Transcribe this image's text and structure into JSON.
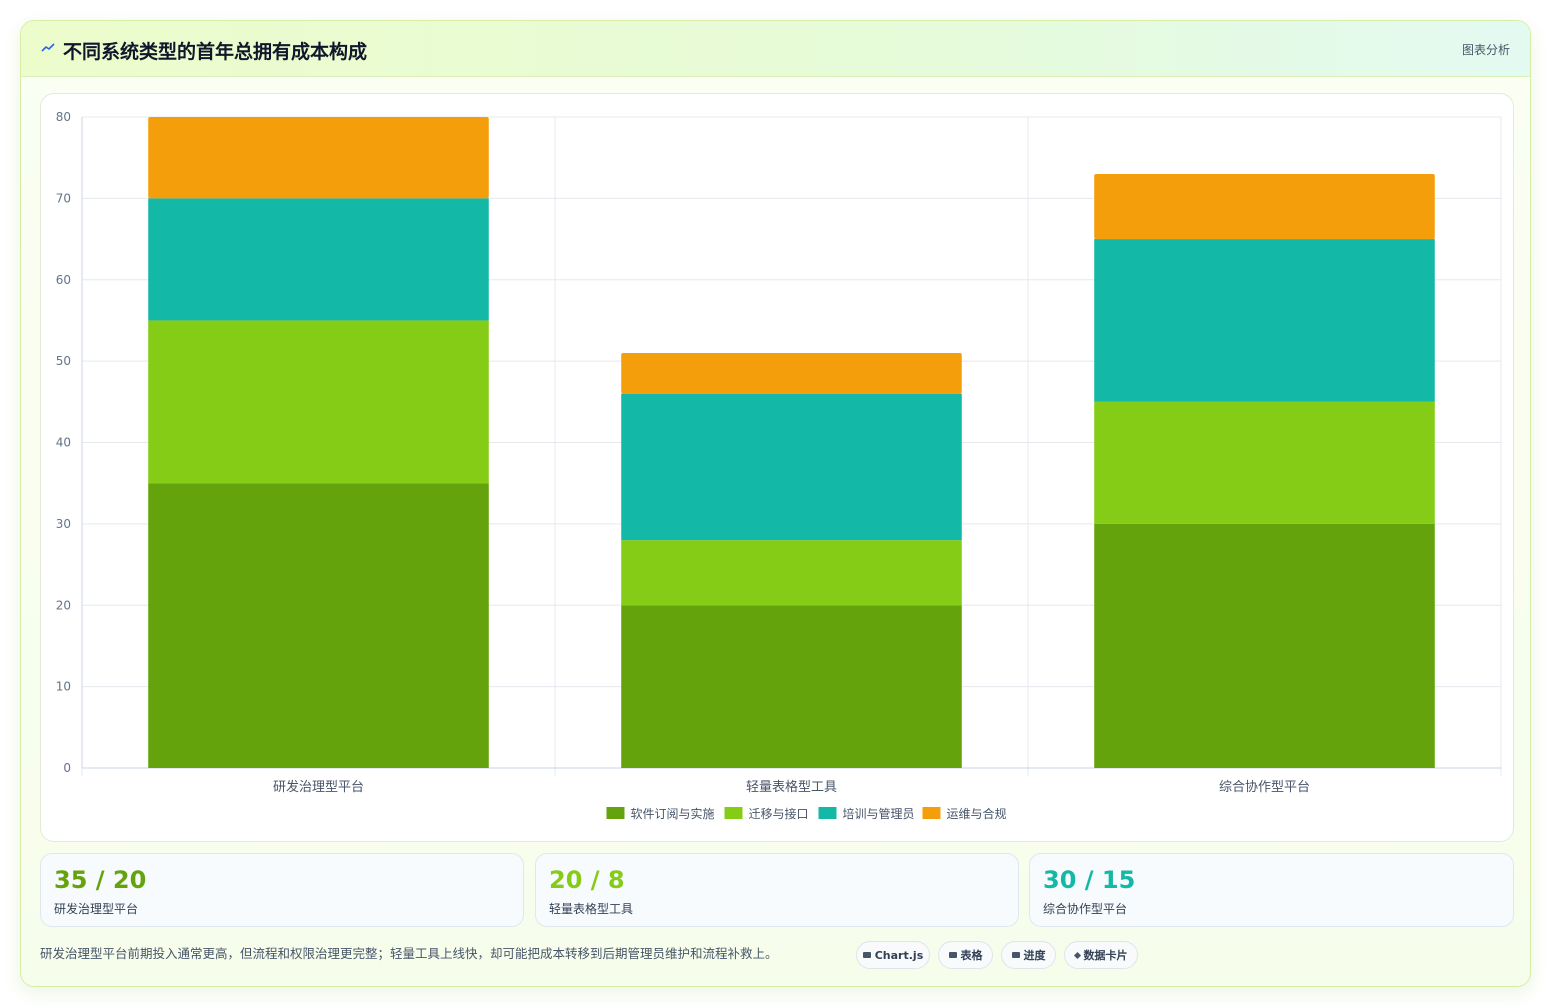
{
  "header": {
    "title": "不同系统类型的首年总拥有成本构成",
    "tag": "图表分析",
    "icon": "trend-line-icon"
  },
  "chart_data": {
    "type": "bar",
    "stacked": true,
    "categories": [
      "研发治理型平台",
      "轻量表格型工具",
      "综合协作型平台"
    ],
    "series": [
      {
        "name": "软件订阅与实施",
        "color": "#65a30d",
        "values": [
          35,
          20,
          30
        ]
      },
      {
        "name": "迁移与接口",
        "color": "#84cc16",
        "values": [
          20,
          8,
          15
        ]
      },
      {
        "name": "培训与管理员",
        "color": "#14b8a6",
        "values": [
          15,
          18,
          20
        ]
      },
      {
        "name": "运维与合规",
        "color": "#f59e0b",
        "values": [
          10,
          5,
          8
        ]
      }
    ],
    "ylim": [
      0,
      80
    ],
    "yticks": [
      0,
      10,
      20,
      30,
      40,
      50,
      60,
      70,
      80
    ],
    "grid": true,
    "legend_position": "bottom",
    "title": "",
    "xlabel": "",
    "ylabel": ""
  },
  "stats": [
    {
      "value": "35 / 20",
      "label": "研发治理型平台",
      "color": "#65a30d"
    },
    {
      "value": "20 / 8",
      "label": "轻量表格型工具",
      "color": "#84cc16"
    },
    {
      "value": "30 / 15",
      "label": "综合协作型平台",
      "color": "#14b8a6"
    }
  ],
  "note": "研发治理型平台前期投入通常更高，但流程和权限治理更完整；轻量工具上线快，却可能把成本转移到后期管理员维护和流程补救上。",
  "chips": [
    {
      "label": "Chart.js",
      "icon": "chart-icon"
    },
    {
      "label": "表格",
      "icon": "table-icon"
    },
    {
      "label": "进度",
      "icon": "progress-icon"
    },
    {
      "label": "数据卡片",
      "icon": "sparkle-icon"
    }
  ]
}
